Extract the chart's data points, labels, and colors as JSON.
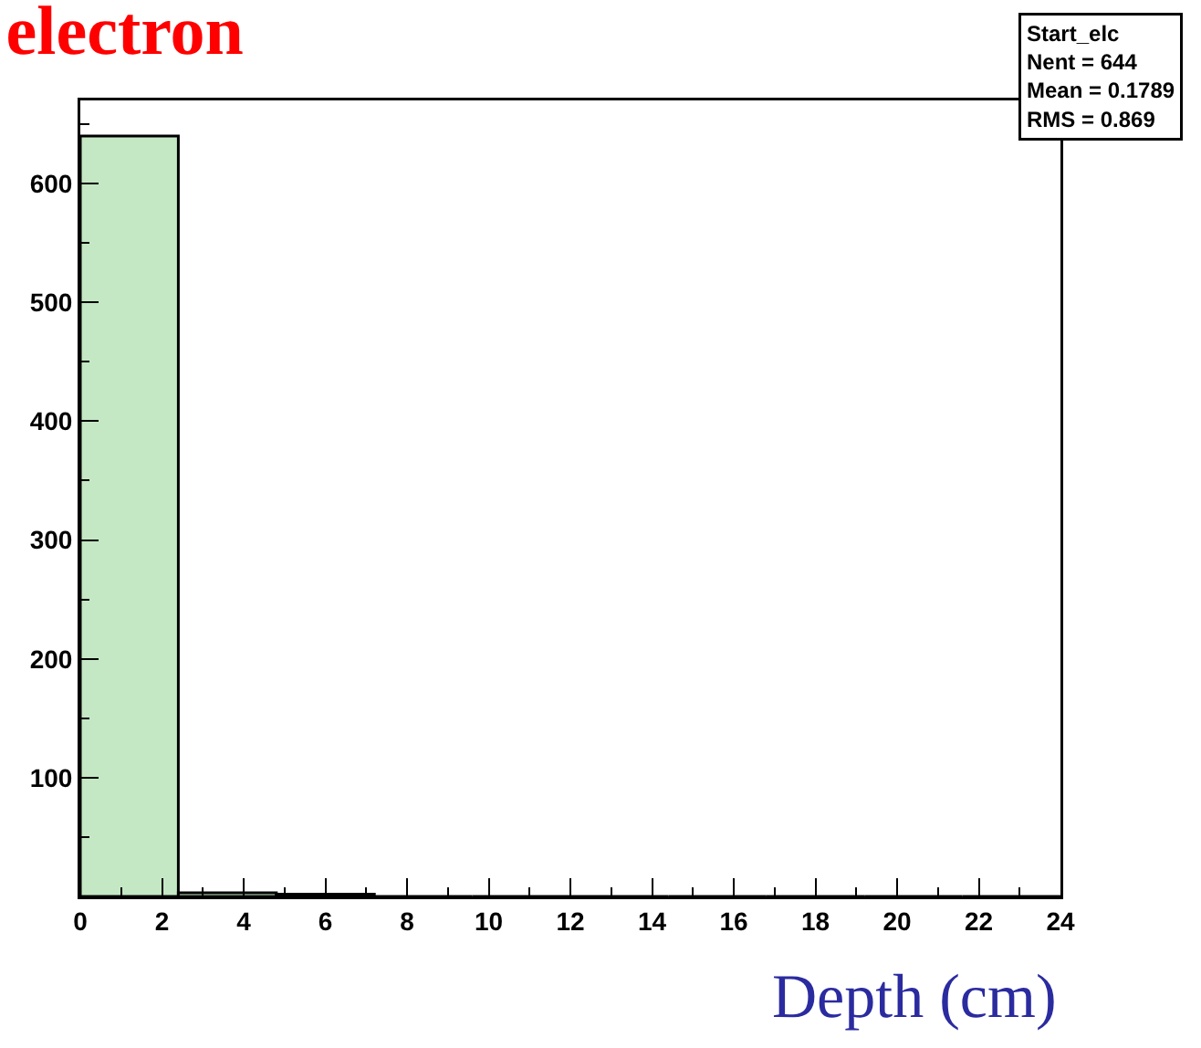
{
  "chart_data": {
    "type": "histogram",
    "title": "electron",
    "xlabel": "Depth (cm)",
    "bins": [
      0,
      2.4,
      4.8,
      7.2,
      9.6,
      12,
      14.4,
      16.8,
      19.2,
      21.6,
      24
    ],
    "values": [
      640,
      3,
      2,
      0,
      0,
      0,
      0,
      0,
      0,
      0
    ],
    "color": "#c4e8c4",
    "xlim": [
      0,
      24
    ],
    "xticks": [
      0,
      2,
      4,
      6,
      8,
      10,
      12,
      14,
      16,
      18,
      20,
      22,
      24
    ],
    "ylim": [
      0,
      670
    ],
    "yticks": [
      100,
      200,
      300,
      400,
      500,
      600
    ],
    "grid": false,
    "legend": false,
    "annotations": [
      "Start_elc",
      "Nent = 644",
      "Mean = 0.1789",
      "RMS = 0.869"
    ]
  }
}
